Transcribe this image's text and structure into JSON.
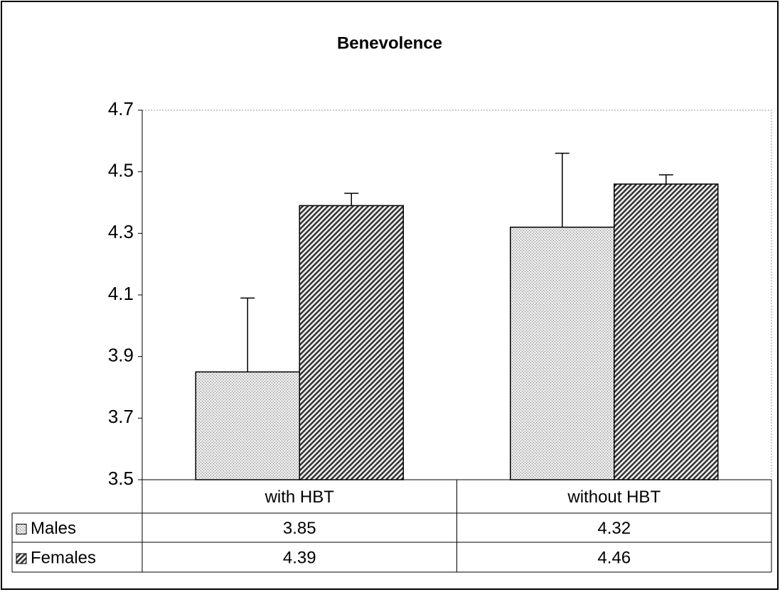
{
  "chart_data": {
    "type": "bar",
    "title": "Benevolence",
    "categories": [
      "with HBT",
      "without HBT"
    ],
    "series": [
      {
        "name": "Males",
        "color": "#c8c8c8",
        "values": [
          3.85,
          4.32
        ],
        "errors": [
          0.24,
          0.24
        ]
      },
      {
        "name": "Females",
        "color": "#707070",
        "values": [
          4.39,
          4.46
        ],
        "errors": [
          0.04,
          0.03
        ]
      }
    ],
    "ylim": [
      3.5,
      4.7
    ],
    "yticks": [
      3.5,
      3.7,
      3.9,
      4.1,
      4.3,
      4.5,
      4.7
    ]
  }
}
